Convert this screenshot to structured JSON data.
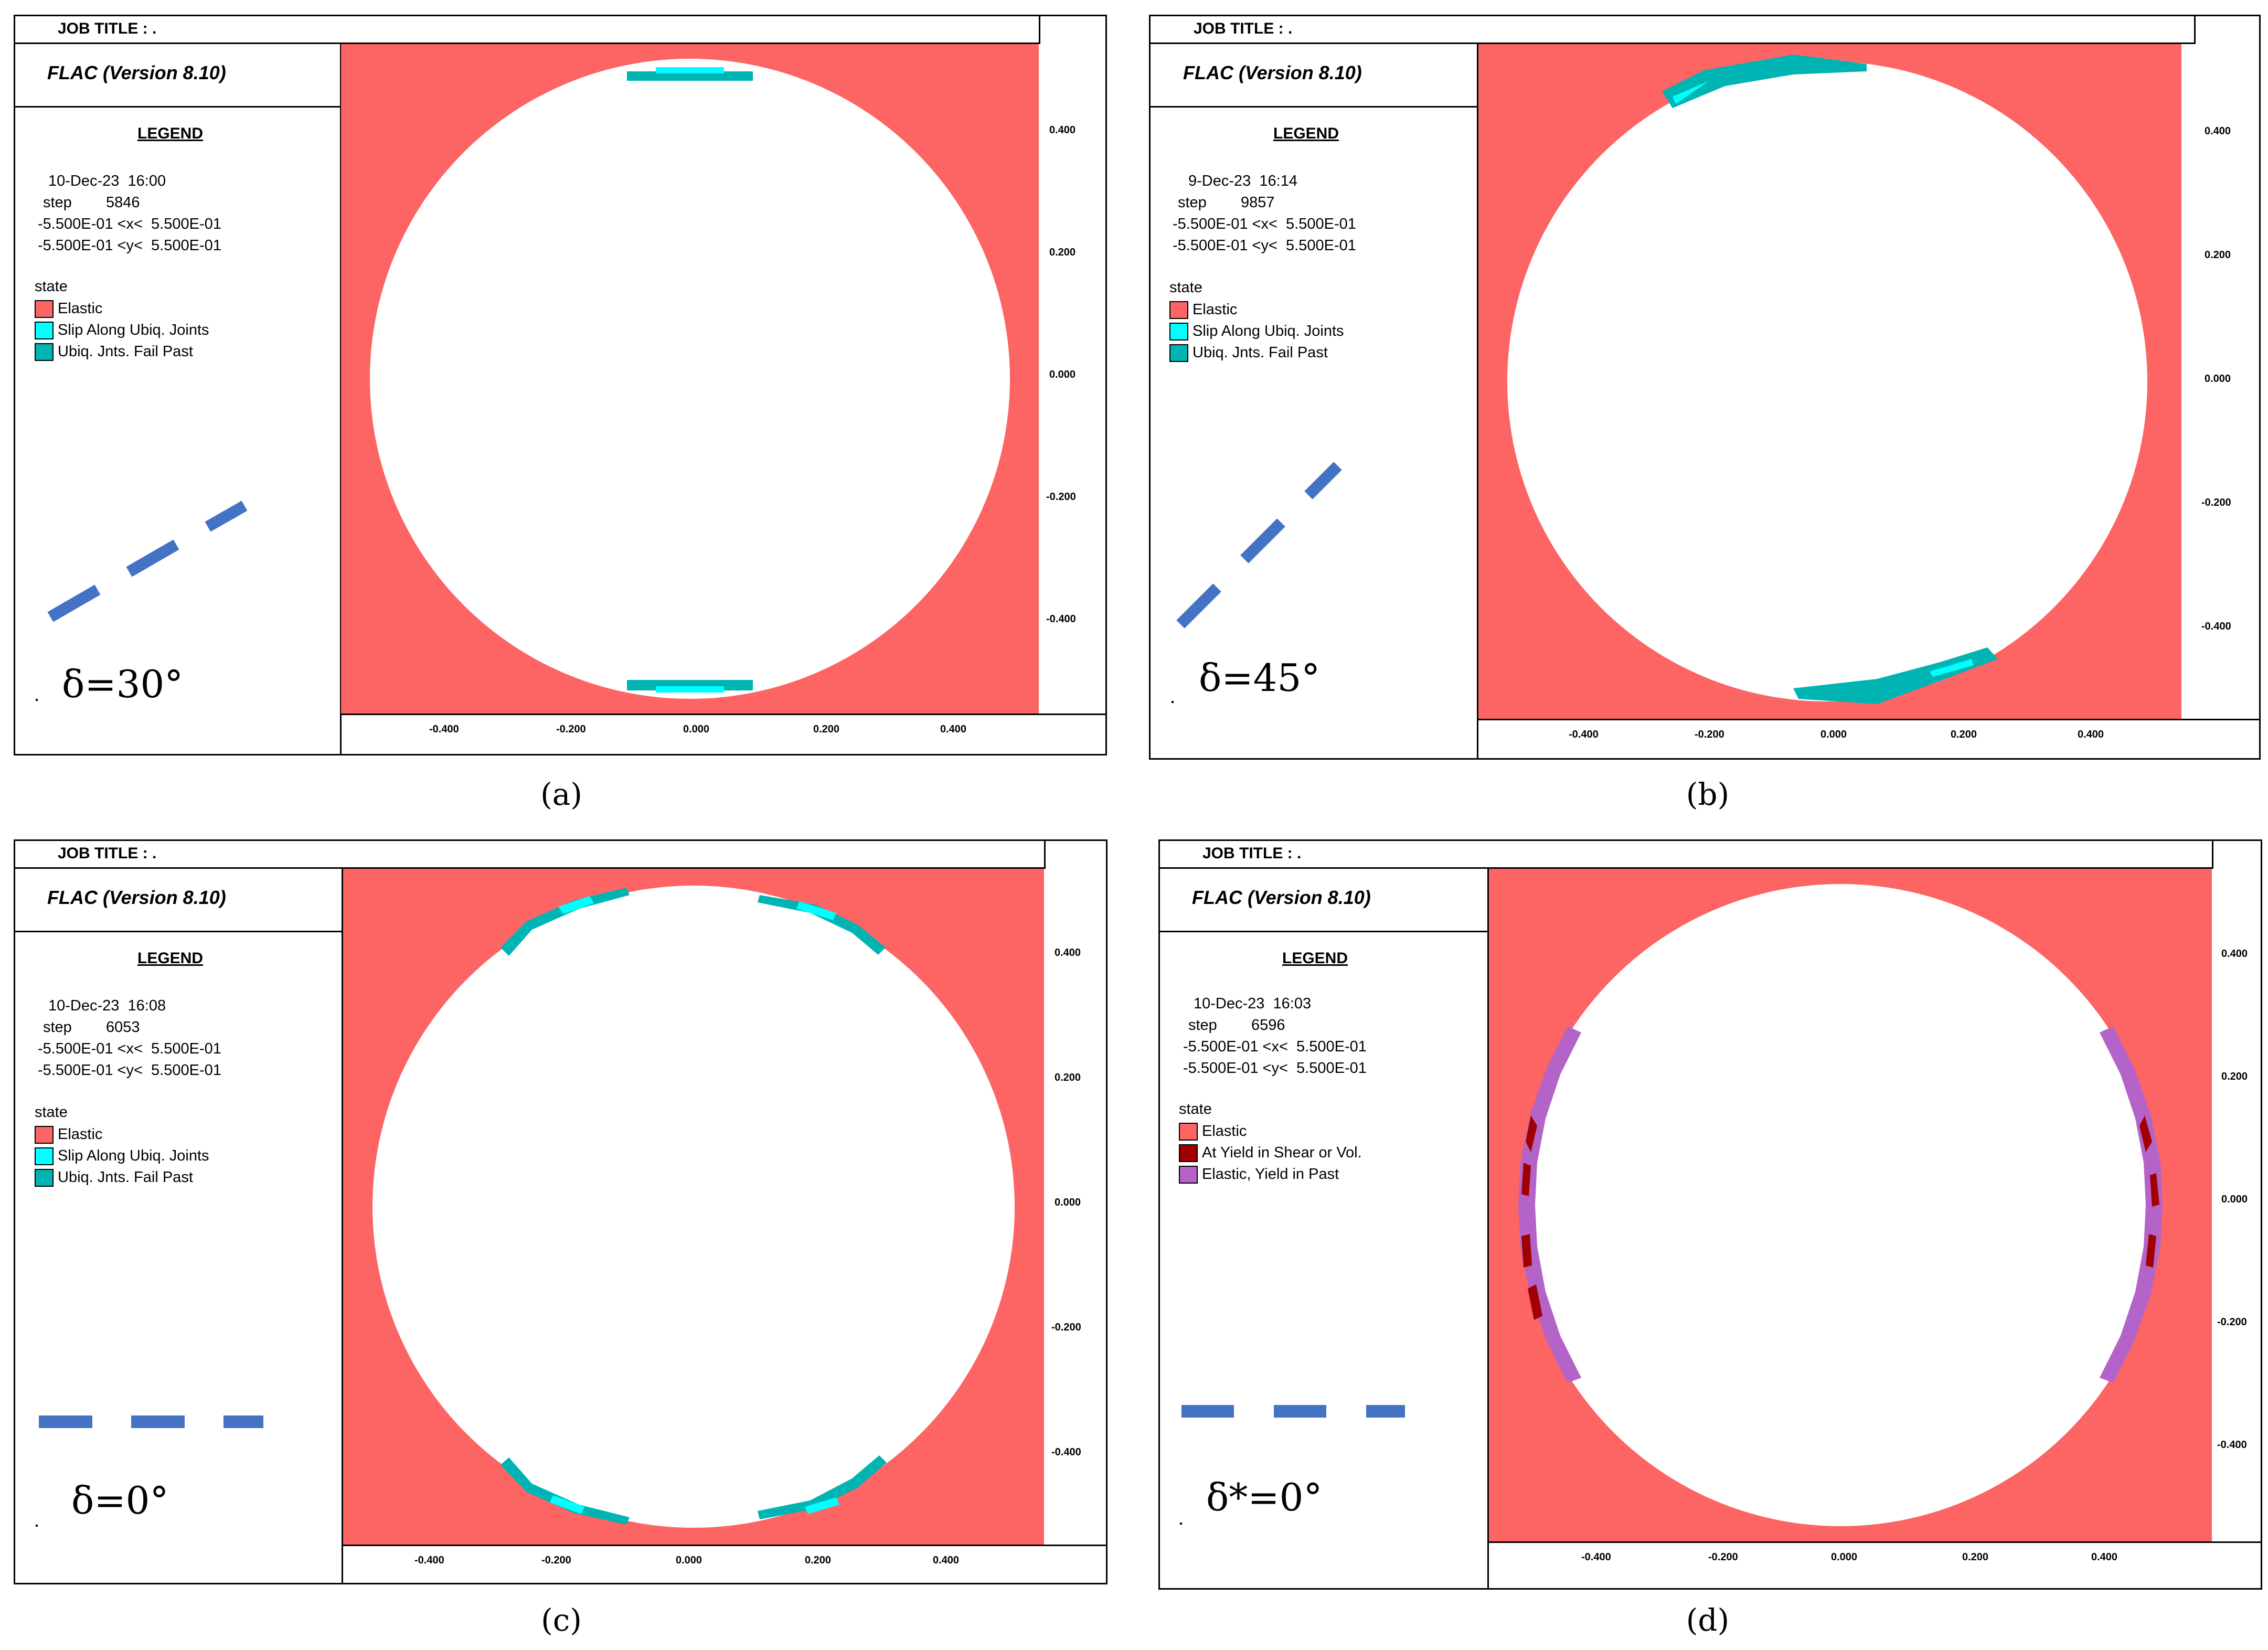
{
  "panels": [
    {
      "id": "a",
      "job_title": "JOB TITLE : .",
      "program": "FLAC (Version 8.10)",
      "legend_title": "LEGEND",
      "date_time": "10-Dec-23  16:00",
      "step_label": "step",
      "step_value": "5846",
      "x_range": "-5.500E-01 <x<  5.500E-01",
      "y_range": "-5.500E-01 <y<  5.500E-01",
      "state_label": "state",
      "states": [
        {
          "label": "Elastic",
          "color": "#fd6464"
        },
        {
          "label": "Slip Along Ubiq. Joints",
          "color": "#00ffff"
        },
        {
          "label": "Ubiq. Jnts. Fail Past",
          "color": "#00b4b4"
        }
      ],
      "delta_label": "δ=30°",
      "joint_angle_deg": 30,
      "caption": "(a)",
      "x_ticks": [
        "-0.400",
        "-0.200",
        "0.000",
        "0.200",
        "0.400"
      ],
      "y_ticks": [
        "0.400",
        "0.200",
        "0.000",
        "-0.200",
        "-0.400"
      ]
    },
    {
      "id": "b",
      "job_title": "JOB TITLE : .",
      "program": "FLAC (Version 8.10)",
      "legend_title": "LEGEND",
      "date_time": "9-Dec-23  16:14",
      "step_label": "step",
      "step_value": "9857",
      "x_range": "-5.500E-01 <x<  5.500E-01",
      "y_range": "-5.500E-01 <y<  5.500E-01",
      "state_label": "state",
      "states": [
        {
          "label": "Elastic",
          "color": "#fd6464"
        },
        {
          "label": "Slip Along Ubiq. Joints",
          "color": "#00ffff"
        },
        {
          "label": "Ubiq. Jnts. Fail Past",
          "color": "#00b4b4"
        }
      ],
      "delta_label": "δ=45°",
      "joint_angle_deg": 45,
      "caption": "(b)",
      "x_ticks": [
        "-0.400",
        "-0.200",
        "0.000",
        "0.200",
        "0.400"
      ],
      "y_ticks": [
        "0.400",
        "0.200",
        "0.000",
        "-0.200",
        "-0.400"
      ]
    },
    {
      "id": "c",
      "job_title": "JOB TITLE : .",
      "program": "FLAC (Version 8.10)",
      "legend_title": "LEGEND",
      "date_time": "10-Dec-23  16:08",
      "step_label": "step",
      "step_value": "6053",
      "x_range": "-5.500E-01 <x<  5.500E-01",
      "y_range": "-5.500E-01 <y<  5.500E-01",
      "state_label": "state",
      "states": [
        {
          "label": "Elastic",
          "color": "#fd6464"
        },
        {
          "label": "Slip Along Ubiq. Joints",
          "color": "#00ffff"
        },
        {
          "label": "Ubiq. Jnts. Fail Past",
          "color": "#00b4b4"
        }
      ],
      "delta_label": "δ=0°",
      "joint_angle_deg": 0,
      "caption": "(c)",
      "x_ticks": [
        "-0.400",
        "-0.200",
        "0.000",
        "0.200",
        "0.400"
      ],
      "y_ticks": [
        "0.400",
        "0.200",
        "0.000",
        "-0.200",
        "-0.400"
      ]
    },
    {
      "id": "d",
      "job_title": "JOB TITLE : .",
      "program": "FLAC (Version 8.10)",
      "legend_title": "LEGEND",
      "date_time": "10-Dec-23  16:03",
      "step_label": "step",
      "step_value": "6596",
      "x_range": "-5.500E-01 <x<  5.500E-01",
      "y_range": "-5.500E-01 <y<  5.500E-01",
      "state_label": "state",
      "states": [
        {
          "label": "Elastic",
          "color": "#fd6464"
        },
        {
          "label": "At Yield in Shear or Vol.",
          "color": "#a00000"
        },
        {
          "label": "Elastic, Yield in Past",
          "color": "#b464c8"
        }
      ],
      "delta_label": "δ*=0°",
      "joint_angle_deg": 0,
      "caption": "(d)",
      "x_ticks": [
        "-0.400",
        "-0.200",
        "0.000",
        "0.200",
        "0.400"
      ],
      "y_ticks": [
        "0.400",
        "0.200",
        "0.000",
        "-0.200",
        "-0.400"
      ]
    }
  ],
  "colors": {
    "elastic": "#fd6464",
    "slip": "#00ffff",
    "fail_past": "#00b4b4",
    "yield_now": "#a00000",
    "yield_past": "#b464c8",
    "joint_dash": "#4472c4"
  }
}
